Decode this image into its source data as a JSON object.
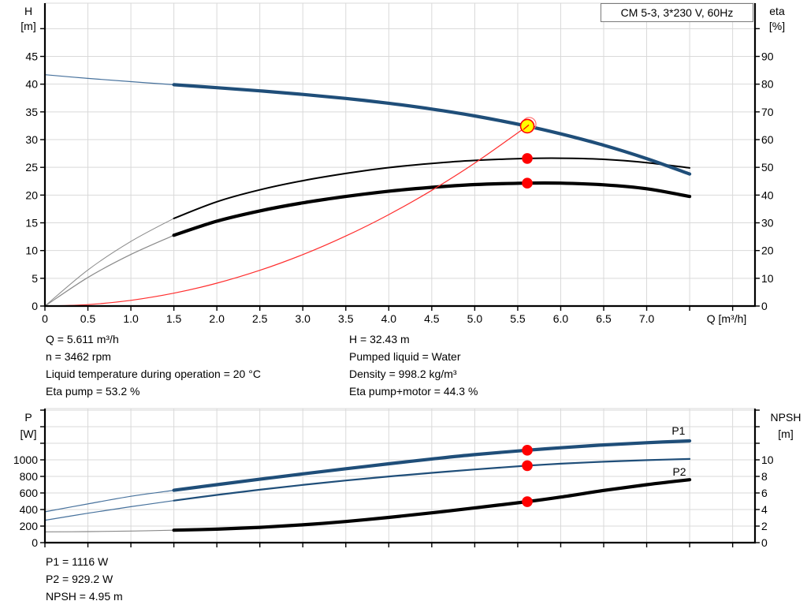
{
  "title_box": {
    "label": "CM 5-3, 3*230 V, 60Hz"
  },
  "top_info": {
    "left": [
      "Q = 5.611 m³/h",
      "n = 3462 rpm",
      "Liquid temperature during operation = 20 °C",
      "Eta pump = 53.2 %"
    ],
    "right": [
      "H = 32.43 m",
      "Pumped liquid = Water",
      "Density = 998.2 kg/m³",
      "Eta pump+motor = 44.3 %"
    ]
  },
  "bottom_info": [
    "P1 = 1116 W",
    "P2 = 929.2 W",
    "NPSH = 4.95 m"
  ],
  "colors": {
    "curve_blue": "#1f4e79",
    "curve_blue_thin": "#46719c",
    "curve_black": "#000000",
    "curve_black_thin": "#8a8a8a",
    "curve_red": "#ff2e2e",
    "marker_red": "#ff0000",
    "marker_yellow": "#ffff00",
    "grid": "#d9d9d9",
    "axis": "#000000"
  },
  "chart_data": [
    {
      "id": "head-efficiency-chart",
      "type": "line",
      "title": "CM 5-3, 3*230 V, 60Hz",
      "grid": true,
      "plot": {
        "x0": 57,
        "x1": 958,
        "y0": 388,
        "y1": 4
      },
      "x_axis": {
        "min": 0,
        "max": 8.26,
        "step": 0.5,
        "labeled_max": 7.0,
        "decimals": 1,
        "title": "Q [m³/h]",
        "title_x": 922,
        "title_baseline": 409
      },
      "y_left": {
        "label": "H",
        "unit": "[m]",
        "min": 0,
        "max": 54.6,
        "step": 5,
        "labeled_max": 45,
        "title_x": 36,
        "title_baselines": [
          19,
          38
        ]
      },
      "y_right": {
        "label": "eta",
        "unit": "[%]",
        "min": 0,
        "max": 109.2,
        "step": 10,
        "labeled_max": 90,
        "title_x": 986,
        "title_baselines": [
          19,
          38
        ]
      },
      "series": [
        {
          "name": "eta-pump-plus-motor",
          "axis": "right",
          "color": "#000000",
          "width": 4.2,
          "thin_until": 1.5,
          "thin_color": "#8a8a8a",
          "thin_width": 1.2,
          "points": [
            [
              0,
              0
            ],
            [
              0.5,
              10.3
            ],
            [
              1,
              18.6
            ],
            [
              1.5,
              25.5
            ],
            [
              2,
              30.6
            ],
            [
              2.5,
              34.3
            ],
            [
              3,
              37.2
            ],
            [
              3.5,
              39.5
            ],
            [
              4,
              41.4
            ],
            [
              4.5,
              42.8
            ],
            [
              5,
              43.8
            ],
            [
              5.611,
              44.3
            ],
            [
              6,
              44.3
            ],
            [
              6.5,
              43.7
            ],
            [
              7,
              42.3
            ],
            [
              7.5,
              39.5
            ]
          ]
        },
        {
          "name": "eta-pump",
          "axis": "right",
          "color": "#000000",
          "width": 2,
          "thin_until": 1.5,
          "thin_color": "#8a8a8a",
          "thin_width": 1,
          "points": [
            [
              0,
              0
            ],
            [
              0.5,
              13
            ],
            [
              1,
              23.3
            ],
            [
              1.5,
              31.6
            ],
            [
              2,
              37.6
            ],
            [
              2.5,
              41.9
            ],
            [
              3,
              45.2
            ],
            [
              3.5,
              47.8
            ],
            [
              4,
              49.9
            ],
            [
              4.5,
              51.4
            ],
            [
              5,
              52.5
            ],
            [
              5.611,
              53.2
            ],
            [
              6,
              53.3
            ],
            [
              6.5,
              52.9
            ],
            [
              7,
              51.7
            ],
            [
              7.5,
              49.8
            ]
          ]
        },
        {
          "name": "system-curve",
          "axis": "left",
          "color": "#ff2e2e",
          "width": 1.2,
          "points": [
            [
              0,
              0
            ],
            [
              0.5,
              0.26
            ],
            [
              1,
              1.03
            ],
            [
              1.5,
              2.32
            ],
            [
              2,
              4.12
            ],
            [
              2.5,
              6.44
            ],
            [
              3,
              9.27
            ],
            [
              3.5,
              12.62
            ],
            [
              4,
              16.48
            ],
            [
              4.5,
              20.86
            ],
            [
              5,
              25.76
            ],
            [
              5.611,
              32.43
            ]
          ]
        },
        {
          "name": "head-curve",
          "axis": "left",
          "color": "#1f4e79",
          "width": 4.2,
          "thin_until": 1.5,
          "thin_color": "#46719c",
          "thin_width": 1.2,
          "points": [
            [
              0,
              41.7
            ],
            [
              0.5,
              41.04
            ],
            [
              1,
              40.45
            ],
            [
              1.5,
              39.9
            ],
            [
              2,
              39.36
            ],
            [
              2.5,
              38.79
            ],
            [
              3,
              38.15
            ],
            [
              3.5,
              37.42
            ],
            [
              4,
              36.55
            ],
            [
              4.5,
              35.51
            ],
            [
              5,
              34.27
            ],
            [
              5.611,
              32.43
            ],
            [
              6,
              31.04
            ],
            [
              6.5,
              28.99
            ],
            [
              7,
              26.58
            ],
            [
              7.5,
              23.8
            ]
          ]
        }
      ],
      "markers": [
        {
          "name": "duty-point",
          "style": "duty-point",
          "axis": "left",
          "q": 5.611,
          "value": 32.43
        },
        {
          "name": "eta-pump-point",
          "style": "red-dot",
          "axis": "right",
          "q": 5.611,
          "value": 53.2
        },
        {
          "name": "eta-pump-motor-point",
          "style": "red-dot",
          "axis": "right",
          "q": 5.611,
          "value": 44.3
        }
      ],
      "annotations": []
    },
    {
      "id": "power-npsh-chart",
      "type": "line",
      "grid": true,
      "plot": {
        "x0": 57,
        "x1": 958,
        "y0": 688,
        "y1": 518
      },
      "x_axis": {
        "min": 0,
        "max": 8.26,
        "step": 0.5,
        "labeled_max": -1,
        "decimals": 1
      },
      "y_left": {
        "label": "P",
        "unit": "[W]",
        "min": 0,
        "max": 1619,
        "step": 200,
        "labeled_max": 1000,
        "title_x": 36,
        "title_baselines": [
          534,
          555
        ]
      },
      "y_right": {
        "label": "NPSH",
        "unit": "[m]",
        "min": 0,
        "max": 16.19,
        "step": 2,
        "labeled_max": 10,
        "title_x": 997,
        "title_baselines": [
          534,
          555
        ]
      },
      "series": [
        {
          "name": "p2-curve",
          "axis": "left",
          "color": "#1f4e79",
          "width": 2.2,
          "thin_until": 1.5,
          "thin_color": "#46719c",
          "thin_width": 1.2,
          "points": [
            [
              0,
              270
            ],
            [
              0.5,
              355
            ],
            [
              1,
              434
            ],
            [
              1.5,
              508
            ],
            [
              2,
              576
            ],
            [
              2.5,
              639
            ],
            [
              3,
              697
            ],
            [
              3.5,
              750
            ],
            [
              4,
              799
            ],
            [
              4.5,
              843
            ],
            [
              5,
              884
            ],
            [
              5.611,
              929.2
            ],
            [
              6,
              953
            ],
            [
              6.5,
              977
            ],
            [
              7,
              996
            ],
            [
              7.5,
              1010
            ]
          ]
        },
        {
          "name": "p1-curve",
          "axis": "left",
          "color": "#1f4e79",
          "width": 4.2,
          "thin_until": 1.5,
          "thin_color": "#46719c",
          "thin_width": 1.2,
          "points": [
            [
              0,
              372
            ],
            [
              0.5,
              468
            ],
            [
              1,
              560
            ],
            [
              1.5,
              632
            ],
            [
              2,
              700
            ],
            [
              2.5,
              766
            ],
            [
              3,
              830
            ],
            [
              3.5,
              892
            ],
            [
              4,
              952
            ],
            [
              4.5,
              1010
            ],
            [
              5,
              1063
            ],
            [
              5.611,
              1116
            ],
            [
              6,
              1146
            ],
            [
              6.5,
              1180
            ],
            [
              7,
              1207
            ],
            [
              7.5,
              1229
            ]
          ]
        },
        {
          "name": "npsh-curve",
          "axis": "right",
          "color": "#000000",
          "width": 4.2,
          "thin_until": 1.5,
          "thin_color": "#8a8a8a",
          "thin_width": 1.2,
          "points": [
            [
              0,
              1.3
            ],
            [
              0.5,
              1.33
            ],
            [
              1,
              1.4
            ],
            [
              1.5,
              1.5
            ],
            [
              2,
              1.63
            ],
            [
              2.5,
              1.85
            ],
            [
              3,
              2.15
            ],
            [
              3.5,
              2.55
            ],
            [
              4,
              3.05
            ],
            [
              4.5,
              3.6
            ],
            [
              5,
              4.2
            ],
            [
              5.611,
              4.95
            ],
            [
              6,
              5.5
            ],
            [
              6.5,
              6.3
            ],
            [
              7,
              7.0
            ],
            [
              7.5,
              7.6
            ]
          ]
        }
      ],
      "markers": [
        {
          "name": "p1-point",
          "style": "red-dot",
          "axis": "left",
          "q": 5.611,
          "value": 1116
        },
        {
          "name": "p2-point",
          "style": "red-dot",
          "axis": "left",
          "q": 5.611,
          "value": 929.2
        },
        {
          "name": "npsh-point",
          "style": "red-dot",
          "axis": "right",
          "q": 5.611,
          "value": 4.95
        }
      ],
      "annotations": [
        {
          "text": "P1",
          "axis": "left",
          "q": 7.37,
          "value": 1350,
          "color": "#1f4e79"
        },
        {
          "text": "P2",
          "axis": "left",
          "q": 7.38,
          "value": 855,
          "color": "#1f4e79"
        }
      ]
    }
  ]
}
